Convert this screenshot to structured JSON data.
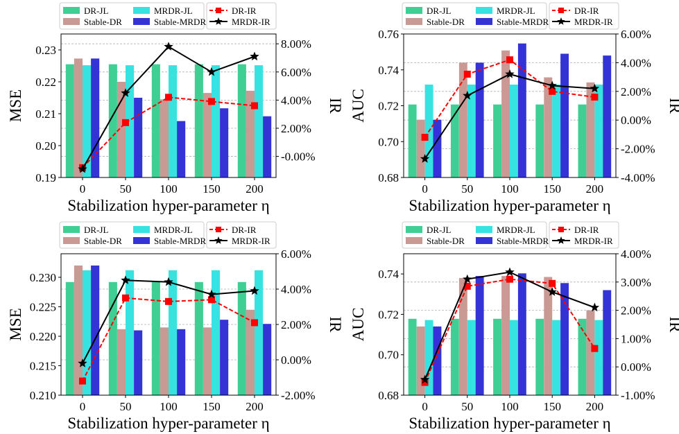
{
  "colors": {
    "DR-JL": "#3fcf95",
    "Stable-DR": "#c99a93",
    "MRDR-JL": "#36e3e0",
    "Stable-MRDR": "#3434d6",
    "DR-IR": "#ff0000",
    "MRDR-IR": "#000000"
  },
  "chart_data": [
    {
      "type": "bar",
      "title": "",
      "xlabel": "Stabilization hyper-parameter η",
      "ylabel": "MSE",
      "y2label": "IR",
      "categories": [
        "0",
        "50",
        "100",
        "150",
        "200"
      ],
      "ylim": [
        0.19,
        0.235
      ],
      "yticks": [
        "0.19",
        "0.20",
        "0.21",
        "0.22",
        "0.23"
      ],
      "y2lim": [
        -1.5,
        8.7
      ],
      "y2ticks": [
        "-0.00%",
        "2.00%",
        "4.00%",
        "6.00%",
        "8.00%"
      ],
      "grid": true,
      "legend_position": "top",
      "series": [
        {
          "name": "DR-JL",
          "values": [
            0.2255,
            0.2255,
            0.2255,
            0.2255,
            0.2255
          ]
        },
        {
          "name": "Stable-DR",
          "values": [
            0.2273,
            0.22,
            0.2145,
            0.2165,
            0.2172
          ]
        },
        {
          "name": "MRDR-JL",
          "values": [
            0.2252,
            0.2252,
            0.2252,
            0.2252,
            0.2252
          ]
        },
        {
          "name": "Stable-MRDR",
          "values": [
            0.2273,
            0.215,
            0.2077,
            0.2117,
            0.2092
          ]
        }
      ],
      "line_series": [
        {
          "name": "DR-IR",
          "values": [
            -0.8,
            2.4,
            4.2,
            3.9,
            3.6
          ]
        },
        {
          "name": "MRDR-IR",
          "values": [
            -0.9,
            4.5,
            7.8,
            6.0,
            7.1
          ]
        }
      ],
      "legend": {
        "col1": [
          "DR-JL",
          "Stable-DR"
        ],
        "col2": [
          "MRDR-JL",
          "Stable-MRDR"
        ],
        "col3": [
          "DR-IR",
          "MRDR-IR"
        ]
      }
    },
    {
      "type": "bar",
      "title": "",
      "xlabel": "Stabilization hyper-parameter η",
      "ylabel": "AUC",
      "y2label": "IR",
      "categories": [
        "0",
        "50",
        "100",
        "150",
        "200"
      ],
      "ylim": [
        0.68,
        0.76
      ],
      "yticks": [
        "0.68",
        "0.70",
        "0.72",
        "0.74",
        "0.76"
      ],
      "y2lim": [
        -4.0,
        6.0
      ],
      "y2ticks": [
        "-4.00%",
        "-2.00%",
        "0.00%",
        "2.00%",
        "4.00%",
        "6.00%"
      ],
      "grid": true,
      "legend_position": "top",
      "series": [
        {
          "name": "DR-JL",
          "values": [
            0.7207,
            0.7207,
            0.7207,
            0.7207,
            0.7207
          ]
        },
        {
          "name": "Stable-DR",
          "values": [
            0.7122,
            0.744,
            0.7508,
            0.7358,
            0.733
          ]
        },
        {
          "name": "MRDR-JL",
          "values": [
            0.7318,
            0.7318,
            0.7318,
            0.7318,
            0.7318
          ]
        },
        {
          "name": "Stable-MRDR",
          "values": [
            0.7122,
            0.744,
            0.7547,
            0.749,
            0.748
          ]
        }
      ],
      "line_series": [
        {
          "name": "DR-IR",
          "values": [
            -1.2,
            3.2,
            4.2,
            2.0,
            1.6
          ]
        },
        {
          "name": "MRDR-IR",
          "values": [
            -2.7,
            1.7,
            3.2,
            2.4,
            2.2
          ]
        }
      ],
      "legend": {
        "col1": [
          "DR-JL",
          "Stable-DR"
        ],
        "col2": [
          "MRDR-JL",
          "Stable-MRDR"
        ],
        "col3": [
          "DR-IR",
          "MRDR-IR"
        ]
      }
    },
    {
      "type": "bar",
      "title": "",
      "xlabel": "Stabilization hyper-parameter η",
      "ylabel": "MSE",
      "y2label": "IR",
      "categories": [
        "0",
        "50",
        "100",
        "150",
        "200"
      ],
      "ylim": [
        0.21,
        0.234
      ],
      "yticks": [
        "0.210",
        "0.215",
        "0.220",
        "0.225",
        "0.230"
      ],
      "y2lim": [
        -2.0,
        6.0
      ],
      "y2ticks": [
        "-2.00%",
        "0.00%",
        "2.00%",
        "4.00%",
        "6.00%"
      ],
      "grid": true,
      "legend_position": "top",
      "series": [
        {
          "name": "DR-JL",
          "values": [
            0.2292,
            0.2292,
            0.2292,
            0.2292,
            0.2292
          ]
        },
        {
          "name": "Stable-DR",
          "values": [
            0.232,
            0.2212,
            0.2215,
            0.2215,
            0.2245
          ]
        },
        {
          "name": "MRDR-JL",
          "values": [
            0.2312,
            0.2312,
            0.2312,
            0.2312,
            0.2312
          ]
        },
        {
          "name": "Stable-MRDR",
          "values": [
            0.232,
            0.221,
            0.2212,
            0.2228,
            0.2221
          ]
        }
      ],
      "line_series": [
        {
          "name": "DR-IR",
          "values": [
            -1.2,
            3.5,
            3.3,
            3.4,
            2.1
          ]
        },
        {
          "name": "MRDR-IR",
          "values": [
            -0.2,
            4.5,
            4.4,
            3.7,
            3.9
          ]
        }
      ],
      "legend": {
        "col1": [
          "DR-JL",
          "Stable-DR"
        ],
        "col2": [
          "MRDR-JL",
          "Stable-MRDR"
        ],
        "col3": [
          "DR-IR",
          "MRDR-IR"
        ]
      }
    },
    {
      "type": "bar",
      "title": "",
      "xlabel": "Stabilization hyper-parameter η",
      "ylabel": "AUC",
      "y2label": "IR",
      "categories": [
        "0",
        "50",
        "100",
        "150",
        "200"
      ],
      "ylim": [
        0.68,
        0.75
      ],
      "yticks": [
        "0.68",
        "0.70",
        "0.72",
        "0.74"
      ],
      "y2lim": [
        -1.0,
        4.0
      ],
      "y2ticks": [
        "-1.00%",
        "0.00%",
        "1.00%",
        "2.00%",
        "3.00%",
        "4.00%"
      ],
      "grid": true,
      "legend_position": "top",
      "series": [
        {
          "name": "DR-JL",
          "values": [
            0.7178,
            0.7178,
            0.7178,
            0.7178,
            0.7178
          ]
        },
        {
          "name": "Stable-DR",
          "values": [
            0.714,
            0.738,
            0.739,
            0.7385,
            0.722
          ]
        },
        {
          "name": "MRDR-JL",
          "values": [
            0.7172,
            0.7172,
            0.7172,
            0.7172,
            0.7172
          ]
        },
        {
          "name": "Stable-MRDR",
          "values": [
            0.714,
            0.739,
            0.7403,
            0.7355,
            0.732
          ]
        }
      ],
      "line_series": [
        {
          "name": "DR-IR",
          "values": [
            -0.55,
            2.85,
            3.1,
            2.95,
            0.65
          ]
        },
        {
          "name": "MRDR-IR",
          "values": [
            -0.45,
            3.1,
            3.35,
            2.65,
            2.1
          ]
        }
      ],
      "legend": {
        "col1": [
          "DR-JL",
          "Stable-DR"
        ],
        "col2": [
          "MRDR-JL",
          "Stable-MRDR"
        ],
        "col3": [
          "DR-IR",
          "MRDR-IR"
        ]
      }
    }
  ]
}
